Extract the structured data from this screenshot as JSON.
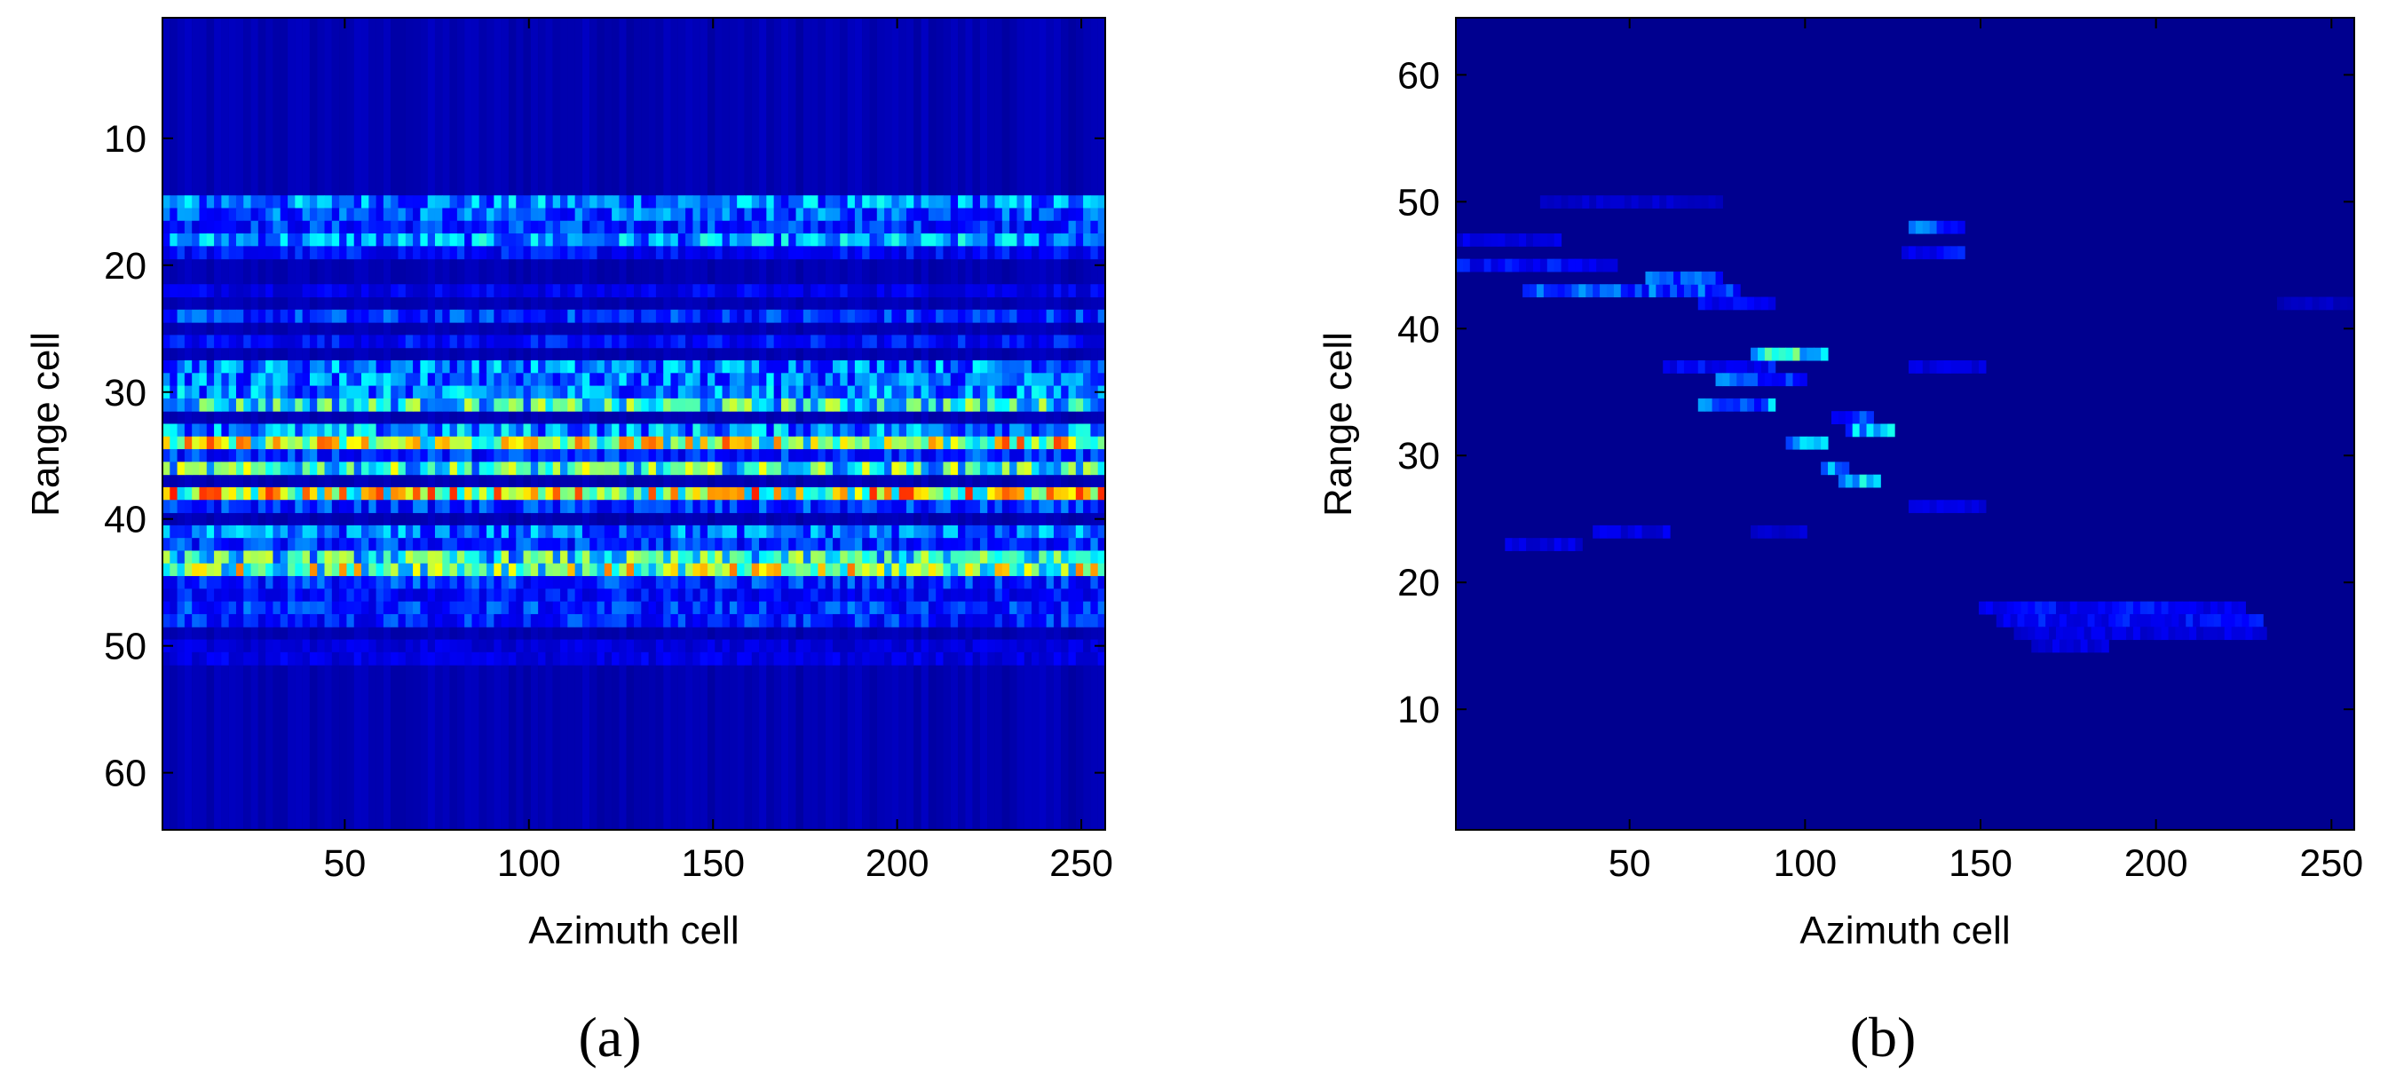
{
  "colormap": [
    "#00008f",
    "#0000ff",
    "#00ffff",
    "#ffff00",
    "#ff0000"
  ],
  "chart_data": [
    {
      "type": "heatmap",
      "panel_label": "(a)",
      "xlabel": "Azimuth cell",
      "ylabel": "Range cell",
      "xlim": [
        1,
        256
      ],
      "ylim": [
        1,
        64
      ],
      "y_direction": "down",
      "xticks": [
        50,
        100,
        150,
        200,
        250
      ],
      "yticks": [
        10,
        20,
        30,
        40,
        50,
        60
      ],
      "rows": [
        {
          "range": 15,
          "intensity": 0.4,
          "x_from": 1,
          "x_to": 256
        },
        {
          "range": 16,
          "intensity": 0.35,
          "x_from": 1,
          "x_to": 256
        },
        {
          "range": 17,
          "intensity": 0.3,
          "x_from": 1,
          "x_to": 256
        },
        {
          "range": 18,
          "intensity": 0.42,
          "x_from": 1,
          "x_to": 256
        },
        {
          "range": 19,
          "intensity": 0.25,
          "x_from": 1,
          "x_to": 256
        },
        {
          "range": 22,
          "intensity": 0.22,
          "x_from": 1,
          "x_to": 256
        },
        {
          "range": 24,
          "intensity": 0.3,
          "x_from": 1,
          "x_to": 256
        },
        {
          "range": 26,
          "intensity": 0.25,
          "x_from": 1,
          "x_to": 256
        },
        {
          "range": 28,
          "intensity": 0.4,
          "x_from": 1,
          "x_to": 256
        },
        {
          "range": 29,
          "intensity": 0.38,
          "x_from": 1,
          "x_to": 256
        },
        {
          "range": 30,
          "intensity": 0.4,
          "x_from": 1,
          "x_to": 256
        },
        {
          "range": 31,
          "intensity": 0.55,
          "x_from": 1,
          "x_to": 256
        },
        {
          "range": 33,
          "intensity": 0.42,
          "x_from": 1,
          "x_to": 256
        },
        {
          "range": 34,
          "intensity": 0.72,
          "x_from": 1,
          "x_to": 256
        },
        {
          "range": 35,
          "intensity": 0.3,
          "x_from": 1,
          "x_to": 256
        },
        {
          "range": 36,
          "intensity": 0.58,
          "x_from": 1,
          "x_to": 256
        },
        {
          "range": 38,
          "intensity": 0.75,
          "x_from": 1,
          "x_to": 256
        },
        {
          "range": 39,
          "intensity": 0.3,
          "x_from": 1,
          "x_to": 256
        },
        {
          "range": 41,
          "intensity": 0.38,
          "x_from": 1,
          "x_to": 256
        },
        {
          "range": 42,
          "intensity": 0.3,
          "x_from": 1,
          "x_to": 256
        },
        {
          "range": 43,
          "intensity": 0.55,
          "x_from": 1,
          "x_to": 256
        },
        {
          "range": 44,
          "intensity": 0.68,
          "x_from": 1,
          "x_to": 256
        },
        {
          "range": 45,
          "intensity": 0.3,
          "x_from": 1,
          "x_to": 256
        },
        {
          "range": 46,
          "intensity": 0.25,
          "x_from": 1,
          "x_to": 256
        },
        {
          "range": 47,
          "intensity": 0.3,
          "x_from": 1,
          "x_to": 256
        },
        {
          "range": 48,
          "intensity": 0.28,
          "x_from": 1,
          "x_to": 256
        },
        {
          "range": 50,
          "intensity": 0.18,
          "x_from": 1,
          "x_to": 256
        },
        {
          "range": 51,
          "intensity": 0.2,
          "x_from": 1,
          "x_to": 256
        }
      ]
    },
    {
      "type": "heatmap",
      "panel_label": "(b)",
      "xlabel": "Azimuth cell",
      "ylabel": "Range cell",
      "xlim": [
        1,
        256
      ],
      "ylim": [
        1,
        64
      ],
      "y_direction": "up",
      "xticks": [
        50,
        100,
        150,
        200,
        250
      ],
      "yticks": [
        10,
        20,
        30,
        40,
        50,
        60
      ],
      "features": [
        {
          "x": [
            1,
            30
          ],
          "range": 47,
          "intensity": 0.2
        },
        {
          "x": [
            1,
            45
          ],
          "range": 45,
          "intensity": 0.25
        },
        {
          "x": [
            20,
            80
          ],
          "range": 43,
          "intensity": 0.35
        },
        {
          "x": [
            55,
            75
          ],
          "range": 44,
          "intensity": 0.35
        },
        {
          "x": [
            70,
            90
          ],
          "range": 42,
          "intensity": 0.25
        },
        {
          "x": [
            25,
            75
          ],
          "range": 50,
          "intensity": 0.15
        },
        {
          "x": [
            60,
            90
          ],
          "range": 37,
          "intensity": 0.25
        },
        {
          "x": [
            85,
            105
          ],
          "range": 38,
          "intensity": 0.55
        },
        {
          "x": [
            75,
            100
          ],
          "range": 36,
          "intensity": 0.35
        },
        {
          "x": [
            70,
            90
          ],
          "range": 34,
          "intensity": 0.4
        },
        {
          "x": [
            108,
            118
          ],
          "range": 33,
          "intensity": 0.35
        },
        {
          "x": [
            112,
            125
          ],
          "range": 32,
          "intensity": 0.45
        },
        {
          "x": [
            95,
            105
          ],
          "range": 31,
          "intensity": 0.4
        },
        {
          "x": [
            105,
            112
          ],
          "range": 29,
          "intensity": 0.45
        },
        {
          "x": [
            110,
            120
          ],
          "range": 28,
          "intensity": 0.45
        },
        {
          "x": [
            15,
            35
          ],
          "range": 23,
          "intensity": 0.2
        },
        {
          "x": [
            40,
            60
          ],
          "range": 24,
          "intensity": 0.2
        },
        {
          "x": [
            85,
            100
          ],
          "range": 24,
          "intensity": 0.15
        },
        {
          "x": [
            130,
            145
          ],
          "range": 48,
          "intensity": 0.35
        },
        {
          "x": [
            128,
            145
          ],
          "range": 46,
          "intensity": 0.25
        },
        {
          "x": [
            130,
            150
          ],
          "range": 37,
          "intensity": 0.2
        },
        {
          "x": [
            130,
            150
          ],
          "range": 26,
          "intensity": 0.2
        },
        {
          "x": [
            150,
            225
          ],
          "range": 18,
          "intensity": 0.25
        },
        {
          "x": [
            155,
            230
          ],
          "range": 17,
          "intensity": 0.25
        },
        {
          "x": [
            160,
            200
          ],
          "range": 16,
          "intensity": 0.2
        },
        {
          "x": [
            200,
            230
          ],
          "range": 16,
          "intensity": 0.2
        },
        {
          "x": [
            165,
            185
          ],
          "range": 15,
          "intensity": 0.2
        },
        {
          "x": [
            235,
            256
          ],
          "range": 42,
          "intensity": 0.12
        }
      ]
    }
  ]
}
